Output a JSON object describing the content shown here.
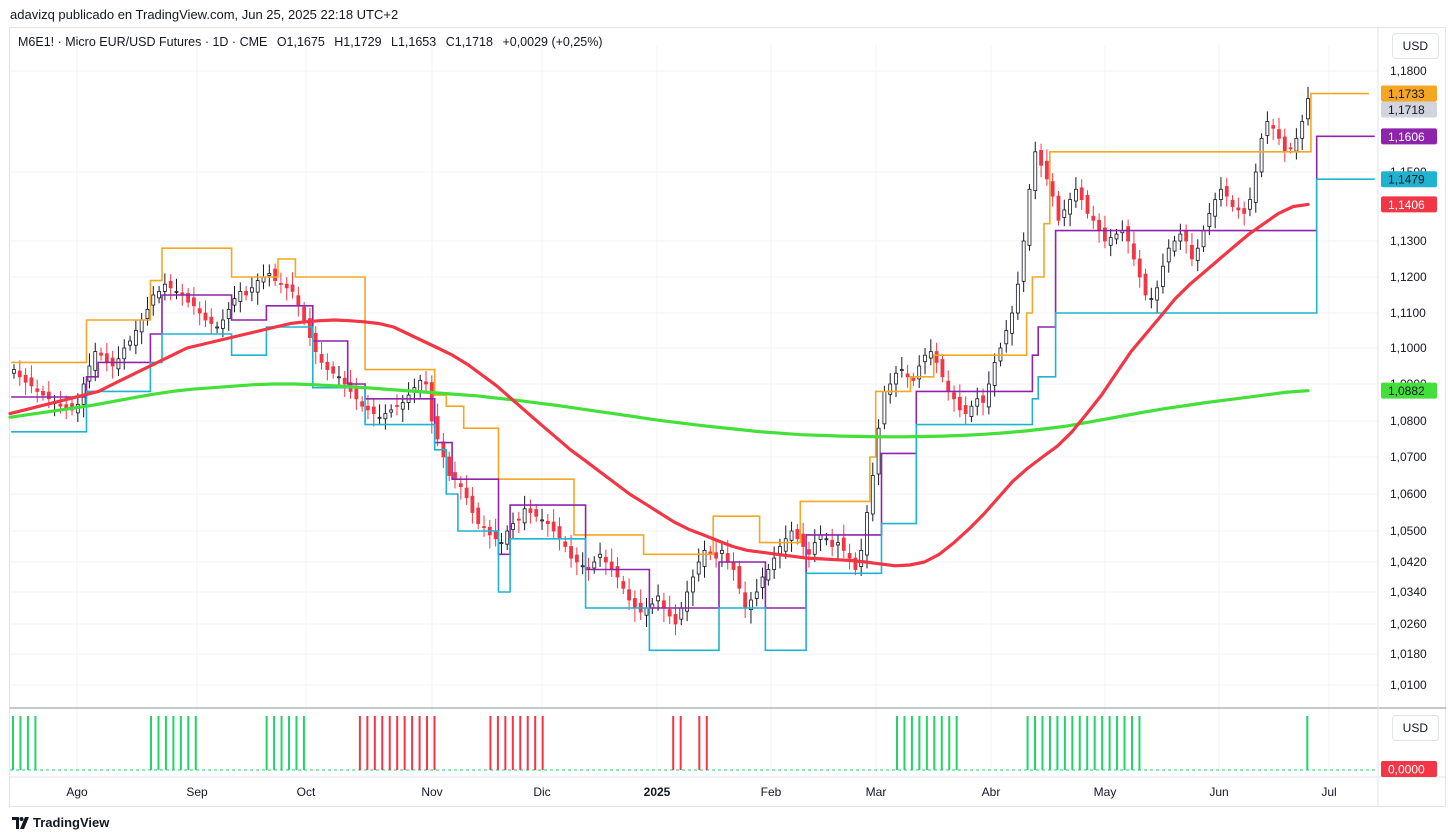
{
  "publisher": "adavizq publicado en TradingView.com, Jun 25, 2025 22:18 UTC+2",
  "legend": {
    "symbol": "M6E1! · Micro EUR/USD Futures · 1D · CME",
    "open": "O1,1675",
    "high": "H1,1729",
    "low": "L1,1653",
    "close": "C1,1718",
    "change": "+0,0029 (+0,25%)"
  },
  "currency_button": "USD",
  "indicator_currency_button": "USD",
  "brand": "TradingView",
  "colors": {
    "up": "#131722",
    "down": "#f23645",
    "ema_fast": "#f23645",
    "ema_slow": "#44e03a",
    "upper_band": "#f5a623",
    "mid_band": "#8e24aa",
    "lower_band": "#1fb3cf",
    "hist_green": "#22d36b",
    "hist_red": "#f23645"
  },
  "chart_data": {
    "type": "candlestick",
    "xlabels": [
      "Ago",
      "Sep",
      "Oct",
      "Nov",
      "Dic",
      "2025",
      "Feb",
      "Mar",
      "Abr",
      "May",
      "Jun",
      "Jul"
    ],
    "yticks": [
      "1,0100",
      "1,0180",
      "1,0260",
      "1,0340",
      "1,0420",
      "1,0500",
      "1,0600",
      "1,0700",
      "1,0800",
      "1,0900",
      "1,1000",
      "1,1100",
      "1,1200",
      "1,1300",
      "1,1500",
      "1,1800"
    ],
    "price_labels": [
      {
        "text": "1,1733",
        "value": 1.1733,
        "color": "#f5a623",
        "fg": "#131722"
      },
      {
        "text": "1,1718",
        "value": 1.1718,
        "color": "#d1d4dc",
        "fg": "#131722"
      },
      {
        "text": "1,1606",
        "value": 1.1606,
        "color": "#8e24aa",
        "fg": "#ffffff"
      },
      {
        "text": "1,1479",
        "value": 1.1479,
        "color": "#1fb3cf",
        "fg": "#131722"
      },
      {
        "text": "1,1406",
        "value": 1.1406,
        "color": "#f23645",
        "fg": "#ffffff"
      },
      {
        "text": "1,0882",
        "value": 1.0882,
        "color": "#44e03a",
        "fg": "#131722"
      }
    ],
    "indicator_label": {
      "text": "0,0000",
      "color": "#f23645",
      "fg": "#ffffff"
    },
    "close_series": [
      1.094,
      1.092,
      1.0905,
      1.0895,
      1.088,
      1.087,
      1.086,
      1.085,
      1.084,
      1.0835,
      1.083,
      1.0845,
      1.09,
      1.095,
      1.099,
      1.098,
      1.096,
      1.095,
      1.097,
      1.1,
      1.102,
      1.105,
      1.108,
      1.111,
      1.115,
      1.116,
      1.118,
      1.117,
      1.116,
      1.115,
      1.113,
      1.112,
      1.11,
      1.108,
      1.107,
      1.106,
      1.108,
      1.111,
      1.114,
      1.116,
      1.115,
      1.117,
      1.119,
      1.12,
      1.121,
      1.119,
      1.118,
      1.117,
      1.116,
      1.112,
      1.108,
      1.103,
      1.099,
      1.096,
      1.094,
      1.093,
      1.092,
      1.09,
      1.088,
      1.086,
      1.084,
      1.083,
      1.082,
      1.081,
      1.082,
      1.083,
      1.084,
      1.085,
      1.087,
      1.089,
      1.091,
      1.09,
      1.08,
      1.075,
      1.07,
      1.065,
      1.064,
      1.062,
      1.059,
      1.055,
      1.052,
      1.051,
      1.049,
      1.048,
      1.047,
      1.05,
      1.052,
      1.053,
      1.056,
      1.055,
      1.054,
      1.053,
      1.052,
      1.05,
      1.048,
      1.046,
      1.043,
      1.042,
      1.041,
      1.04,
      1.042,
      1.044,
      1.042,
      1.04,
      1.038,
      1.035,
      1.032,
      1.03,
      1.029,
      1.03,
      1.031,
      1.033,
      1.03,
      1.028,
      1.026,
      1.03,
      1.034,
      1.038,
      1.042,
      1.045,
      1.044,
      1.043,
      1.045,
      1.042,
      1.04,
      1.035,
      1.03,
      1.032,
      1.034,
      1.038,
      1.04,
      1.043,
      1.046,
      1.048,
      1.05,
      1.048,
      1.046,
      1.044,
      1.047,
      1.049,
      1.048,
      1.046,
      1.047,
      1.045,
      1.043,
      1.04,
      1.045,
      1.055,
      1.065,
      1.078,
      1.088,
      1.09,
      1.093,
      1.094,
      1.092,
      1.091,
      1.095,
      1.098,
      1.099,
      1.096,
      1.092,
      1.088,
      1.086,
      1.083,
      1.082,
      1.084,
      1.086,
      1.085,
      1.09,
      1.096,
      1.1,
      1.105,
      1.11,
      1.118,
      1.13,
      1.145,
      1.156,
      1.152,
      1.148,
      1.143,
      1.136,
      1.139,
      1.142,
      1.145,
      1.142,
      1.138,
      1.136,
      1.133,
      1.13,
      1.131,
      1.132,
      1.133,
      1.13,
      1.125,
      1.12,
      1.115,
      1.114,
      1.117,
      1.123,
      1.128,
      1.13,
      1.132,
      1.13,
      1.125,
      1.128,
      1.133,
      1.138,
      1.142,
      1.145,
      1.143,
      1.14,
      1.139,
      1.138,
      1.142,
      1.15,
      1.16,
      1.165,
      1.163,
      1.16,
      1.156,
      1.157,
      1.16,
      1.165,
      1.1718
    ],
    "ema_fast": [
      1.082,
      1.083,
      1.084,
      1.085,
      1.086,
      1.087,
      1.088,
      1.09,
      1.092,
      1.094,
      1.096,
      1.098,
      1.1,
      1.101,
      1.102,
      1.103,
      1.104,
      1.105,
      1.106,
      1.107,
      1.1075,
      1.1078,
      1.108,
      1.1078,
      1.1075,
      1.107,
      1.106,
      1.104,
      1.102,
      1.1,
      1.098,
      1.0955,
      1.0925,
      1.0895,
      1.086,
      1.0825,
      1.079,
      1.0755,
      1.072,
      1.069,
      1.066,
      1.063,
      1.06,
      1.0575,
      1.055,
      1.0525,
      1.0505,
      1.049,
      1.0475,
      1.046,
      1.045,
      1.0445,
      1.044,
      1.0435,
      1.043,
      1.0428,
      1.0426,
      1.0424,
      1.042,
      1.0415,
      1.041,
      1.0412,
      1.042,
      1.044,
      1.047,
      1.0505,
      1.0545,
      1.059,
      1.0635,
      1.067,
      1.07,
      1.073,
      1.077,
      1.082,
      1.087,
      1.093,
      1.099,
      1.104,
      1.109,
      1.114,
      1.118,
      1.1215,
      1.125,
      1.1285,
      1.132,
      1.135,
      1.138,
      1.14,
      1.1406
    ],
    "ema_slow": [
      1.081,
      1.0818,
      1.0826,
      1.0834,
      1.0842,
      1.0852,
      1.0862,
      1.0872,
      1.088,
      1.0886,
      1.089,
      1.0894,
      1.0898,
      1.09,
      1.09,
      1.0898,
      1.0895,
      1.0892,
      1.0888,
      1.0884,
      1.088,
      1.0876,
      1.0872,
      1.0868,
      1.0862,
      1.0856,
      1.0849,
      1.0842,
      1.0834,
      1.0826,
      1.0818,
      1.081,
      1.0802,
      1.0795,
      1.0788,
      1.0782,
      1.0776,
      1.077,
      1.0766,
      1.0762,
      1.076,
      1.0758,
      1.0757,
      1.0756,
      1.0756,
      1.0757,
      1.0758,
      1.076,
      1.0763,
      1.0767,
      1.0772,
      1.0778,
      1.0785,
      1.0795,
      1.0805,
      1.0815,
      1.0825,
      1.0834,
      1.0842,
      1.085,
      1.0857,
      1.0864,
      1.0871,
      1.0878,
      1.0882
    ],
    "upper_band": [
      1.096,
      1.096,
      1.096,
      1.096,
      1.096,
      1.096,
      1.096,
      1.096,
      1.096,
      1.096,
      1.096,
      1.096,
      1.096,
      1.108,
      1.108,
      1.108,
      1.108,
      1.108,
      1.108,
      1.108,
      1.108,
      1.108,
      1.108,
      1.108,
      1.119,
      1.119,
      1.128,
      1.128,
      1.128,
      1.128,
      1.128,
      1.128,
      1.128,
      1.128,
      1.128,
      1.128,
      1.128,
      1.128,
      1.12,
      1.12,
      1.12,
      1.12,
      1.12,
      1.12,
      1.12,
      1.12,
      1.125,
      1.125,
      1.125,
      1.12,
      1.12,
      1.12,
      1.12,
      1.12,
      1.12,
      1.12,
      1.12,
      1.12,
      1.12,
      1.12,
      1.12,
      1.094,
      1.094,
      1.094,
      1.094,
      1.094,
      1.094,
      1.094,
      1.094,
      1.094,
      1.094,
      1.094,
      1.094,
      1.087,
      1.087,
      1.084,
      1.084,
      1.084,
      1.078,
      1.078,
      1.078,
      1.078,
      1.078,
      1.078,
      1.064,
      1.064,
      1.064,
      1.064,
      1.064,
      1.064,
      1.064,
      1.064,
      1.064,
      1.064,
      1.064,
      1.064,
      1.064,
      1.049,
      1.049,
      1.049,
      1.049,
      1.049,
      1.049,
      1.049,
      1.049,
      1.049,
      1.049,
      1.049,
      1.049,
      1.044,
      1.044,
      1.044,
      1.044,
      1.044,
      1.044,
      1.044,
      1.044,
      1.044,
      1.044,
      1.044,
      1.044,
      1.054,
      1.054,
      1.054,
      1.054,
      1.054,
      1.054,
      1.054,
      1.054,
      1.047,
      1.047,
      1.047,
      1.047,
      1.047,
      1.047,
      1.047,
      1.058,
      1.058,
      1.058,
      1.058,
      1.058,
      1.058,
      1.058,
      1.058,
      1.058,
      1.058,
      1.058,
      1.058,
      1.07,
      1.088,
      1.088,
      1.088,
      1.088,
      1.088,
      1.088,
      1.092,
      1.092,
      1.092,
      1.092,
      1.098,
      1.098,
      1.098,
      1.098,
      1.098,
      1.098,
      1.098,
      1.098,
      1.098,
      1.098,
      1.098,
      1.098,
      1.098,
      1.098,
      1.098,
      1.098,
      1.11,
      1.12,
      1.12,
      1.135,
      1.156,
      1.156,
      1.156,
      1.156,
      1.156,
      1.156,
      1.156,
      1.156,
      1.156,
      1.156,
      1.156,
      1.156,
      1.156,
      1.156,
      1.156,
      1.156,
      1.156,
      1.156,
      1.156,
      1.156,
      1.156,
      1.156,
      1.156,
      1.156,
      1.156,
      1.156,
      1.156,
      1.156,
      1.156,
      1.156,
      1.156,
      1.156,
      1.156,
      1.156,
      1.156,
      1.156,
      1.156,
      1.156,
      1.156,
      1.156,
      1.156,
      1.156,
      1.156,
      1.156,
      1.156,
      1.1733,
      1.1733,
      1.1733,
      1.1733,
      1.1733,
      1.1733,
      1.1733,
      1.1733,
      1.1733,
      1.1733
    ],
    "mid_band": [
      1.0865,
      1.0865,
      1.0865,
      1.0865,
      1.0865,
      1.0865,
      1.0865,
      1.0865,
      1.0865,
      1.0865,
      1.0865,
      1.0865,
      1.0865,
      1.092,
      1.092,
      1.096,
      1.096,
      1.096,
      1.096,
      1.096,
      1.096,
      1.096,
      1.096,
      1.096,
      1.104,
      1.104,
      1.115,
      1.115,
      1.115,
      1.115,
      1.115,
      1.115,
      1.115,
      1.115,
      1.115,
      1.115,
      1.115,
      1.115,
      1.108,
      1.108,
      1.108,
      1.108,
      1.108,
      1.108,
      1.112,
      1.112,
      1.112,
      1.112,
      1.112,
      1.112,
      1.112,
      1.112,
      1.102,
      1.102,
      1.102,
      1.102,
      1.102,
      1.102,
      1.09,
      1.09,
      1.09,
      1.086,
      1.086,
      1.086,
      1.086,
      1.086,
      1.086,
      1.086,
      1.086,
      1.086,
      1.086,
      1.086,
      1.086,
      1.074,
      1.074,
      1.074,
      1.064,
      1.064,
      1.064,
      1.064,
      1.064,
      1.064,
      1.064,
      1.064,
      1.044,
      1.044,
      1.057,
      1.057,
      1.057,
      1.057,
      1.057,
      1.057,
      1.057,
      1.057,
      1.057,
      1.057,
      1.057,
      1.057,
      1.057,
      1.04,
      1.04,
      1.04,
      1.04,
      1.04,
      1.04,
      1.04,
      1.04,
      1.04,
      1.04,
      1.04,
      1.03,
      1.03,
      1.03,
      1.03,
      1.03,
      1.03,
      1.03,
      1.03,
      1.03,
      1.03,
      1.03,
      1.03,
      1.042,
      1.042,
      1.042,
      1.042,
      1.042,
      1.042,
      1.042,
      1.042,
      1.03,
      1.03,
      1.03,
      1.03,
      1.03,
      1.03,
      1.03,
      1.049,
      1.049,
      1.049,
      1.049,
      1.049,
      1.049,
      1.049,
      1.049,
      1.049,
      1.049,
      1.049,
      1.049,
      1.049,
      1.071,
      1.071,
      1.071,
      1.071,
      1.071,
      1.071,
      1.088,
      1.088,
      1.088,
      1.088,
      1.088,
      1.088,
      1.088,
      1.088,
      1.088,
      1.088,
      1.088,
      1.088,
      1.088,
      1.088,
      1.088,
      1.088,
      1.088,
      1.088,
      1.088,
      1.088,
      1.098,
      1.106,
      1.106,
      1.106,
      1.133,
      1.133,
      1.133,
      1.133,
      1.133,
      1.133,
      1.133,
      1.133,
      1.133,
      1.133,
      1.133,
      1.133,
      1.133,
      1.133,
      1.133,
      1.133,
      1.133,
      1.133,
      1.133,
      1.133,
      1.133,
      1.133,
      1.133,
      1.133,
      1.133,
      1.133,
      1.133,
      1.133,
      1.133,
      1.133,
      1.133,
      1.133,
      1.133,
      1.133,
      1.133,
      1.133,
      1.133,
      1.133,
      1.133,
      1.133,
      1.133,
      1.133,
      1.133,
      1.133,
      1.133,
      1.1606,
      1.1606,
      1.1606,
      1.1606,
      1.1606,
      1.1606,
      1.1606,
      1.1606,
      1.1606,
      1.1606
    ],
    "lower_band": [
      1.077,
      1.077,
      1.077,
      1.077,
      1.077,
      1.077,
      1.077,
      1.077,
      1.077,
      1.077,
      1.077,
      1.077,
      1.077,
      1.088,
      1.088,
      1.088,
      1.088,
      1.088,
      1.088,
      1.088,
      1.088,
      1.088,
      1.088,
      1.088,
      1.096,
      1.096,
      1.104,
      1.104,
      1.104,
      1.104,
      1.104,
      1.104,
      1.104,
      1.104,
      1.104,
      1.104,
      1.104,
      1.104,
      1.098,
      1.098,
      1.098,
      1.098,
      1.098,
      1.098,
      1.106,
      1.106,
      1.106,
      1.106,
      1.106,
      1.106,
      1.106,
      1.106,
      1.089,
      1.089,
      1.089,
      1.089,
      1.089,
      1.089,
      1.089,
      1.089,
      1.089,
      1.079,
      1.079,
      1.079,
      1.079,
      1.079,
      1.079,
      1.079,
      1.079,
      1.079,
      1.079,
      1.079,
      1.079,
      1.072,
      1.072,
      1.06,
      1.06,
      1.05,
      1.05,
      1.05,
      1.05,
      1.05,
      1.05,
      1.05,
      1.034,
      1.034,
      1.048,
      1.048,
      1.048,
      1.048,
      1.048,
      1.048,
      1.048,
      1.048,
      1.048,
      1.048,
      1.048,
      1.048,
      1.048,
      1.03,
      1.03,
      1.03,
      1.03,
      1.03,
      1.03,
      1.03,
      1.03,
      1.03,
      1.03,
      1.03,
      1.019,
      1.019,
      1.019,
      1.019,
      1.019,
      1.019,
      1.019,
      1.019,
      1.019,
      1.019,
      1.019,
      1.019,
      1.03,
      1.03,
      1.03,
      1.03,
      1.03,
      1.03,
      1.03,
      1.03,
      1.019,
      1.019,
      1.019,
      1.019,
      1.019,
      1.019,
      1.019,
      1.039,
      1.039,
      1.039,
      1.039,
      1.039,
      1.039,
      1.039,
      1.039,
      1.039,
      1.039,
      1.039,
      1.039,
      1.039,
      1.052,
      1.052,
      1.052,
      1.052,
      1.052,
      1.052,
      1.079,
      1.079,
      1.079,
      1.079,
      1.079,
      1.079,
      1.079,
      1.079,
      1.079,
      1.079,
      1.079,
      1.079,
      1.079,
      1.079,
      1.079,
      1.079,
      1.079,
      1.079,
      1.079,
      1.079,
      1.086,
      1.092,
      1.092,
      1.092,
      1.11,
      1.11,
      1.11,
      1.11,
      1.11,
      1.11,
      1.11,
      1.11,
      1.11,
      1.11,
      1.11,
      1.11,
      1.11,
      1.11,
      1.11,
      1.11,
      1.11,
      1.11,
      1.11,
      1.11,
      1.11,
      1.11,
      1.11,
      1.11,
      1.11,
      1.11,
      1.11,
      1.11,
      1.11,
      1.11,
      1.11,
      1.11,
      1.11,
      1.11,
      1.11,
      1.11,
      1.11,
      1.11,
      1.11,
      1.11,
      1.11,
      1.11,
      1.11,
      1.11,
      1.11,
      1.1479,
      1.1479,
      1.1479,
      1.1479,
      1.1479,
      1.1479,
      1.1479,
      1.1479,
      1.1479,
      1.1479
    ],
    "histogram": [
      {
        "from": 0,
        "to": 6,
        "color": "green"
      },
      {
        "from": 37,
        "to": 49,
        "color": "green"
      },
      {
        "from": 68,
        "to": 79,
        "color": "green"
      },
      {
        "from": 93,
        "to": 114,
        "color": "red"
      },
      {
        "from": 128,
        "to": 143,
        "color": "red"
      },
      {
        "from": 177,
        "to": 180,
        "color": "red"
      },
      {
        "from": 184,
        "to": 186,
        "color": "red"
      },
      {
        "from": 237,
        "to": 253,
        "color": "green"
      },
      {
        "from": 272,
        "to": 302,
        "color": "green"
      },
      {
        "from": 347,
        "to": 348,
        "color": "green"
      }
    ]
  }
}
